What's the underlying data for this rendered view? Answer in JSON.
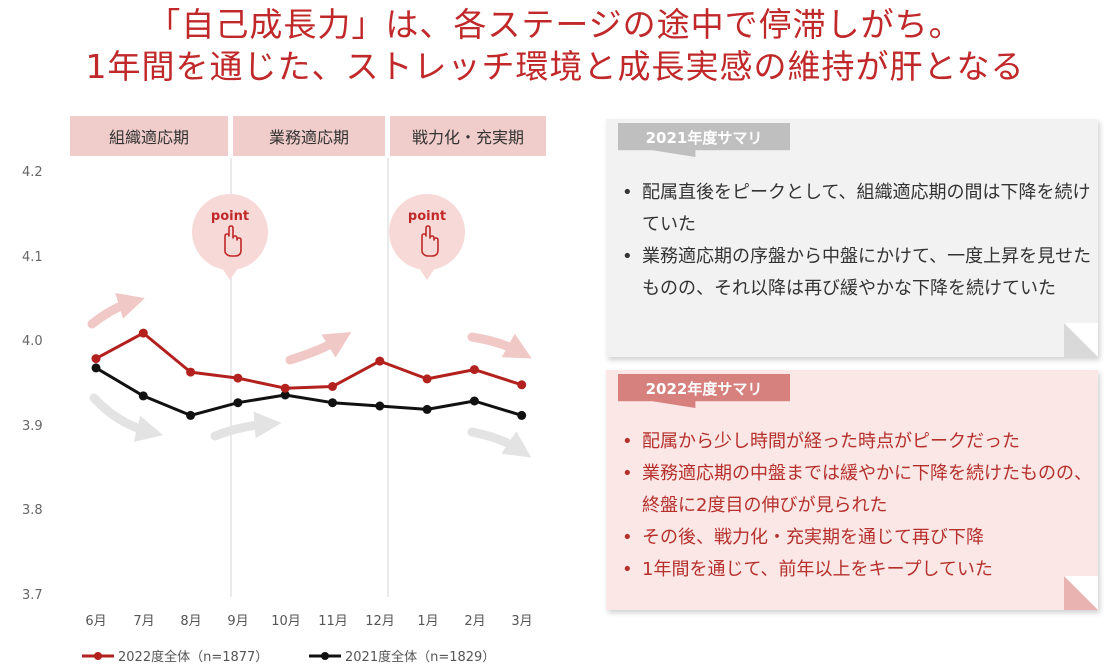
{
  "header": {
    "line1": "「自己成長力」は、各ステージの途中で停滞しがち。",
    "line2": "1年間を通じた、ストレッチ環境と成長実感の維持が肝となる"
  },
  "phases": [
    "組織適応期",
    "業務適応期",
    "戦力化・充実期"
  ],
  "callouts": {
    "point_label": "point"
  },
  "colors": {
    "accent": "#c0282a",
    "series_2022": "#b3211e",
    "series_2021": "#111111",
    "phase_bg": "#f0cdcb"
  },
  "chart_data": {
    "type": "line",
    "title": "",
    "xlabel": "",
    "ylabel": "",
    "categories": [
      "6月",
      "7月",
      "8月",
      "9月",
      "10月",
      "11月",
      "12月",
      "1月",
      "2月",
      "3月"
    ],
    "ylim": [
      3.7,
      4.2
    ],
    "yticks": [
      "4.2",
      "4.1",
      "4.0",
      "3.9",
      "3.8",
      "3.7"
    ],
    "series": [
      {
        "name": "2022度全体（n=1877）",
        "values": [
          3.98,
          4.01,
          3.964,
          3.957,
          3.945,
          3.947,
          3.977,
          3.956,
          3.967,
          3.949
        ]
      },
      {
        "name": "2021度全体（n=1829）",
        "values": [
          3.969,
          3.936,
          3.913,
          3.928,
          3.937,
          3.928,
          3.924,
          3.92,
          3.93,
          3.913
        ]
      }
    ],
    "legend": "bottom"
  },
  "summary_2021": {
    "title": "2021年度サマリ",
    "bullets": [
      "配属直後をピークとして、組織適応期の間は下降を続けていた",
      "業務適応期の序盤から中盤にかけて、一度上昇を見せたものの、それ以降は再び緩やかな下降を続けていた"
    ]
  },
  "summary_2022": {
    "title": "2022年度サマリ",
    "bullets": [
      "配属から少し時間が経った時点がピークだった",
      "業務適応期の中盤までは緩やかに下降を続けたものの、終盤に2度目の伸びが見られた",
      "その後、戦力化・充実期を通じて再び下降",
      "1年間を通じて、前年以上をキープしていた"
    ]
  }
}
